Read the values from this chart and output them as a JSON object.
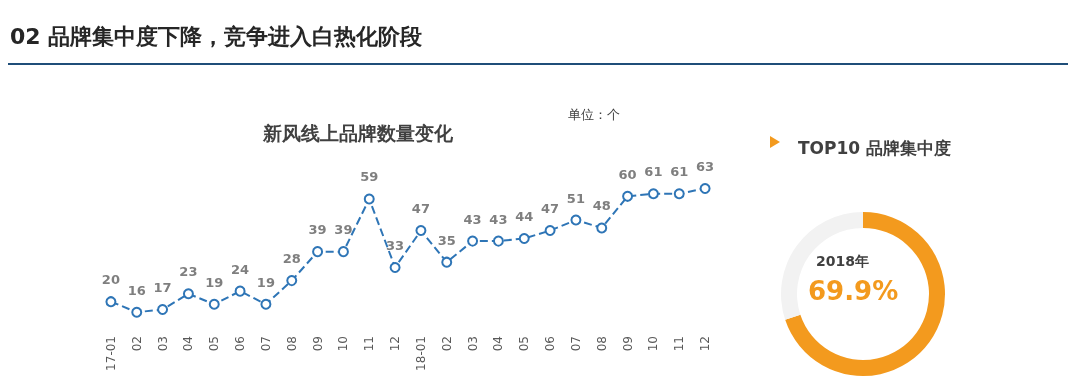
{
  "chart_data": [
    {
      "type": "line",
      "title": "新风线上品牌数量变化",
      "annotations": [
        "02 品牌集中度下降，竞争进入白热化阶段",
        "单位：个"
      ],
      "categories": [
        "17-01",
        "02",
        "03",
        "04",
        "05",
        "06",
        "07",
        "08",
        "09",
        "10",
        "11",
        "12",
        "18-01",
        "02",
        "03",
        "04",
        "05",
        "06",
        "07",
        "08",
        "09",
        "10",
        "11",
        "12"
      ],
      "series": [
        {
          "color": "#2e75b6",
          "values": [
            20,
            16,
            17,
            23,
            19,
            24,
            19,
            28,
            39,
            39,
            59,
            33,
            47,
            35,
            43,
            43,
            44,
            47,
            51,
            48,
            60,
            61,
            61,
            63
          ]
        }
      ],
      "data_labels": true,
      "marker": "circle",
      "line_style": "dashed",
      "tick_labels": "x"
    },
    {
      "type": "donut",
      "title": "TOP10 品牌集中度",
      "annotations": [
        "2018年",
        "69.9%"
      ],
      "categories": [
        null,
        null
      ],
      "values": [
        69.9,
        30.1
      ],
      "colors": [
        "#f39a1e",
        "#f2f2f2"
      ]
    }
  ]
}
